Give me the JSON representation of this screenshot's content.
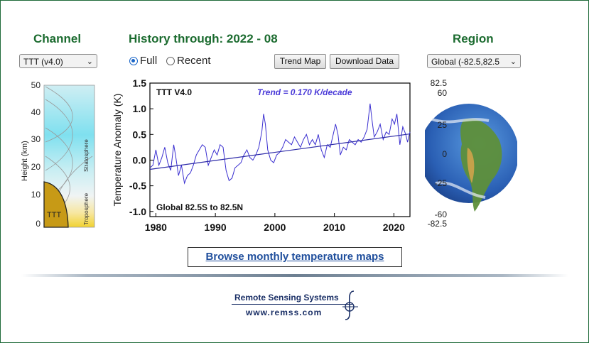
{
  "channel": {
    "heading": "Channel",
    "select_value": "TTT (v4.0)"
  },
  "history": {
    "heading": "History through: 2022 - 08",
    "radio_full": "Full",
    "radio_recent": "Recent",
    "selected": "Full"
  },
  "buttons": {
    "trend_map": "Trend Map",
    "download": "Download Data"
  },
  "region": {
    "heading": "Region",
    "select_value": "Global (-82.5,82.5",
    "lat_labels": [
      "82.5",
      "60",
      "25",
      "0",
      "-25",
      "-60",
      "-82.5"
    ]
  },
  "weighting": {
    "y_axis_label": "Height  (km)",
    "y_ticks": [
      "50",
      "40",
      "30",
      "20",
      "10",
      "0"
    ],
    "layer_upper": "Stratosphere",
    "layer_lower": "Troposphere",
    "channel_tag": "TTT"
  },
  "chart_data": {
    "type": "line",
    "series_label": "TTT V4.0",
    "trend_text": "Trend =  0.170 K/decade",
    "region_text": "Global  82.5S to  82.5N",
    "ylabel": "Temperature Anomaly (K)",
    "xlabel": "",
    "xlim": [
      1979.0,
      2022.7
    ],
    "ylim": [
      -1.1,
      1.5
    ],
    "x_ticks": [
      1980,
      1990,
      2000,
      2010,
      2020
    ],
    "y_ticks": [
      "1.5",
      "1.0",
      "0.5",
      "0.0",
      "-0.5",
      "-1.0"
    ],
    "trend_line": {
      "x": [
        1979.0,
        2022.7
      ],
      "y": [
        -0.18,
        0.51
      ]
    },
    "series": [
      {
        "x": [
          1979.0,
          1979.5,
          1980.0,
          1980.5,
          1981.0,
          1981.5,
          1982.0,
          1982.5,
          1983.0,
          1983.3,
          1983.8,
          1984.3,
          1984.8,
          1985.3,
          1985.8,
          1986.3,
          1986.8,
          1987.3,
          1987.8,
          1988.3,
          1988.8,
          1989.3,
          1989.8,
          1990.3,
          1990.8,
          1991.3,
          1991.8,
          1992.3,
          1992.8,
          1993.3,
          1993.8,
          1994.3,
          1994.8,
          1995.3,
          1995.8,
          1996.3,
          1996.8,
          1997.3,
          1997.8,
          1998.1,
          1998.4,
          1998.8,
          1999.3,
          1999.8,
          2000.3,
          2000.8,
          2001.3,
          2001.8,
          2002.3,
          2002.8,
          2003.3,
          2003.8,
          2004.3,
          2004.8,
          2005.3,
          2005.8,
          2006.3,
          2006.8,
          2007.3,
          2007.8,
          2008.3,
          2008.8,
          2009.3,
          2009.8,
          2010.2,
          2010.6,
          2011.0,
          2011.5,
          2012.0,
          2012.5,
          2013.0,
          2013.5,
          2014.0,
          2014.5,
          2015.0,
          2015.5,
          2016.0,
          2016.3,
          2016.7,
          2017.2,
          2017.7,
          2018.2,
          2018.7,
          2019.2,
          2019.7,
          2020.1,
          2020.5,
          2021.0,
          2021.5,
          2022.0,
          2022.3,
          2022.7
        ],
        "y": [
          -0.15,
          -0.1,
          0.2,
          -0.1,
          0.05,
          0.25,
          -0.05,
          -0.2,
          0.3,
          0.1,
          -0.3,
          -0.1,
          -0.45,
          -0.3,
          -0.25,
          -0.1,
          0.1,
          0.2,
          0.3,
          0.25,
          -0.1,
          0.05,
          0.2,
          0.1,
          0.3,
          0.25,
          -0.2,
          -0.4,
          -0.35,
          -0.15,
          -0.1,
          -0.05,
          0.1,
          0.2,
          0.05,
          0.0,
          0.1,
          0.25,
          0.55,
          0.9,
          0.7,
          0.2,
          0.0,
          -0.05,
          0.1,
          0.15,
          0.25,
          0.4,
          0.35,
          0.3,
          0.45,
          0.35,
          0.25,
          0.4,
          0.5,
          0.3,
          0.4,
          0.3,
          0.5,
          0.2,
          0.05,
          0.3,
          0.25,
          0.5,
          0.7,
          0.5,
          0.1,
          0.25,
          0.2,
          0.4,
          0.35,
          0.3,
          0.4,
          0.35,
          0.45,
          0.6,
          1.1,
          0.8,
          0.45,
          0.55,
          0.7,
          0.4,
          0.55,
          0.5,
          0.8,
          0.7,
          0.9,
          0.3,
          0.65,
          0.5,
          0.35,
          0.55
        ]
      }
    ]
  },
  "footer": {
    "browse": "Browse monthly temperature maps",
    "org": "Remote Sensing Systems",
    "url": "www.remss.com"
  },
  "colors": {
    "heading": "#1b6b2f",
    "series": "#3a2fd0",
    "trend": "#2d2aa8"
  }
}
